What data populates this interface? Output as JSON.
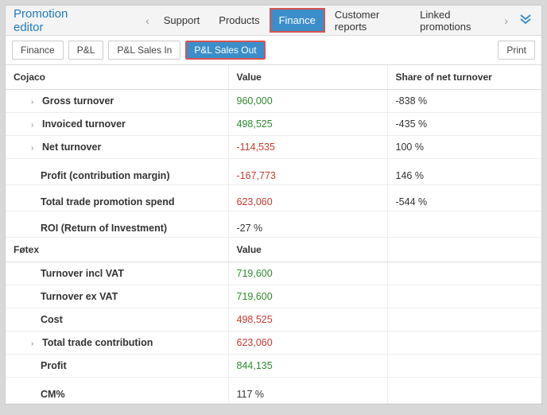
{
  "header": {
    "title": "Promotion editor",
    "tabs": [
      "Support",
      "Products",
      "Finance",
      "Customer reports",
      "Linked promotions"
    ],
    "active_tab": "Finance"
  },
  "toolbar": {
    "buttons": [
      "Finance",
      "P&L",
      "P&L Sales In",
      "P&L Sales Out"
    ],
    "active_button": "P&L Sales Out",
    "print": "Print"
  },
  "columns": {
    "value": "Value",
    "share": "Share of net turnover"
  },
  "section1": {
    "name": "Cojaco",
    "rows": [
      {
        "label": "Gross turnover",
        "value": "960,000",
        "value_color": "green",
        "share": "-838 %",
        "expandable": true,
        "bold": true
      },
      {
        "label": "Invoiced turnover",
        "value": "498,525",
        "value_color": "green",
        "share": "-435 %",
        "expandable": true,
        "bold": true
      },
      {
        "label": "Net turnover",
        "value": "-114,535",
        "value_color": "red",
        "share": "100 %",
        "expandable": true,
        "bold": true
      },
      {
        "label": "Profit (contribution margin)",
        "value": "-167,773",
        "value_color": "red",
        "share": "146 %",
        "expandable": false,
        "bold": true,
        "gap": true
      },
      {
        "label": "Total trade promotion spend",
        "value": "623,060",
        "value_color": "red",
        "share": "-544 %",
        "expandable": false,
        "bold": true,
        "gap": true
      },
      {
        "label": "ROI (Return of Investment)",
        "value": "-27 %",
        "value_color": "",
        "share": "",
        "expandable": false,
        "bold": true,
        "gap": true
      }
    ]
  },
  "section2": {
    "name": "Føtex",
    "rows": [
      {
        "label": "Turnover incl VAT",
        "value": "719,600",
        "value_color": "green",
        "expandable": false,
        "bold": true
      },
      {
        "label": "Turnover ex VAT",
        "value": "719,600",
        "value_color": "green",
        "expandable": false,
        "bold": true
      },
      {
        "label": "Cost",
        "value": "498,525",
        "value_color": "red",
        "expandable": false,
        "bold": true
      },
      {
        "label": "Total trade contribution",
        "value": "623,060",
        "value_color": "red",
        "expandable": true,
        "bold": true
      },
      {
        "label": "Profit",
        "value": "844,135",
        "value_color": "green",
        "expandable": false,
        "bold": true
      },
      {
        "label": "CM%",
        "value": "117 %",
        "value_color": "",
        "expandable": false,
        "bold": true,
        "gap": true
      }
    ]
  }
}
